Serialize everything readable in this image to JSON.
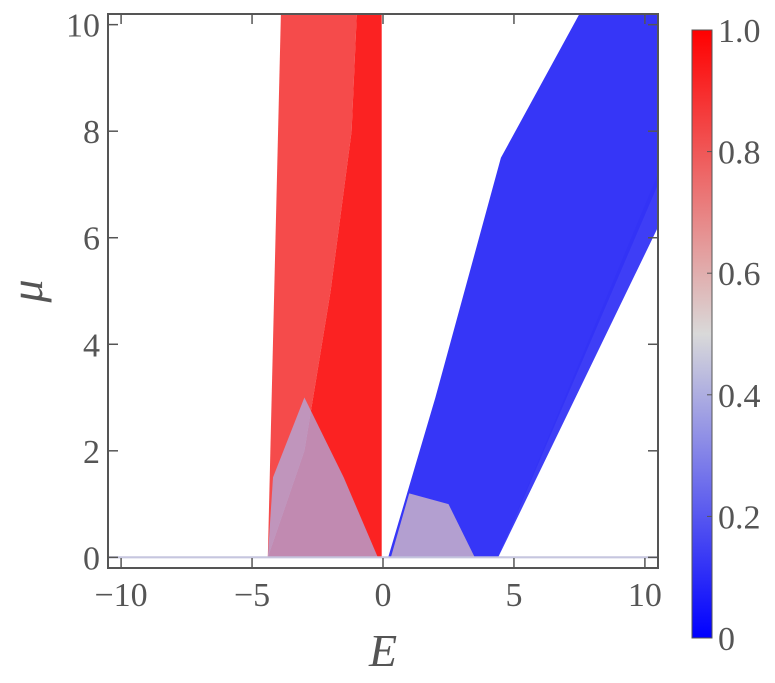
{
  "chart_data": {
    "type": "heatmap",
    "title": "",
    "xlabel": "E",
    "ylabel": "μ",
    "xlim": [
      -10.5,
      10.5
    ],
    "ylim": [
      -0.2,
      10.2
    ],
    "x_ticks": [
      {
        "value": -10,
        "label": "−10"
      },
      {
        "value": -5,
        "label": "−5"
      },
      {
        "value": 0,
        "label": "0"
      },
      {
        "value": 5,
        "label": "5"
      },
      {
        "value": 10,
        "label": "10"
      }
    ],
    "y_ticks": [
      {
        "value": 0,
        "label": "0"
      },
      {
        "value": 2,
        "label": "2"
      },
      {
        "value": 4,
        "label": "4"
      },
      {
        "value": 6,
        "label": "6"
      },
      {
        "value": 8,
        "label": "8"
      },
      {
        "value": 10,
        "label": "10"
      }
    ],
    "colorbar": {
      "range": [
        0,
        1
      ],
      "low_color": "#0000ff",
      "mid_color": "#d9d9d9",
      "high_color": "#ff0000",
      "ticks": [
        {
          "value": 0,
          "label": "0"
        },
        {
          "value": 0.2,
          "label": "0.2"
        },
        {
          "value": 0.4,
          "label": "0.4"
        },
        {
          "value": 0.6,
          "label": "0.6"
        },
        {
          "value": 0.8,
          "label": "0.8"
        },
        {
          "value": 1.0,
          "label": "1.0"
        }
      ]
    },
    "regions": [
      {
        "name": "left-band-outer",
        "value": 0.85,
        "boundary": [
          [
            -4.4,
            0
          ],
          [
            -3.9,
            10.2
          ],
          [
            -1.0,
            10.2
          ],
          [
            -1.2,
            8.0
          ],
          [
            -2.0,
            5.0
          ],
          [
            -3.0,
            2.0
          ],
          [
            -4.4,
            0
          ]
        ]
      },
      {
        "name": "left-band-inner",
        "value": 0.95,
        "boundary": [
          [
            -4.4,
            0
          ],
          [
            -3.0,
            2.0
          ],
          [
            -2.0,
            5.0
          ],
          [
            -1.2,
            8.0
          ],
          [
            -1.0,
            10.2
          ],
          [
            -0.05,
            10.2
          ],
          [
            -0.05,
            0
          ],
          [
            -4.4,
            0
          ]
        ]
      },
      {
        "name": "left-band-base",
        "value": 0.4,
        "boundary": [
          [
            -4.4,
            0
          ],
          [
            -4.2,
            1.5
          ],
          [
            -3.0,
            3.0
          ],
          [
            -1.5,
            1.5
          ],
          [
            -0.2,
            0
          ],
          [
            -4.4,
            0
          ]
        ]
      },
      {
        "name": "right-band",
        "value": 0.1,
        "boundary": [
          [
            0.2,
            0
          ],
          [
            2.0,
            3.0
          ],
          [
            4.5,
            7.5
          ],
          [
            7.5,
            10.2
          ],
          [
            10.5,
            10.2
          ],
          [
            10.5,
            7.0
          ],
          [
            4.4,
            0
          ],
          [
            0.2,
            0
          ]
        ]
      },
      {
        "name": "right-band-base",
        "value": 0.55,
        "boundary": [
          [
            0.3,
            0
          ],
          [
            1.0,
            1.2
          ],
          [
            2.5,
            1.0
          ],
          [
            3.5,
            0
          ],
          [
            0.3,
            0
          ]
        ]
      },
      {
        "name": "right-lower-sliver",
        "value": 0.12,
        "boundary": [
          [
            4.4,
            0
          ],
          [
            10.5,
            6.2
          ],
          [
            10.5,
            7.2
          ],
          [
            4.4,
            0
          ]
        ]
      },
      {
        "name": "mu-zero-line",
        "value": 0.45,
        "boundary": [
          [
            -10.5,
            -0.02
          ],
          [
            10.5,
            -0.02
          ],
          [
            10.5,
            0.02
          ],
          [
            -10.5,
            0.02
          ]
        ]
      }
    ]
  }
}
